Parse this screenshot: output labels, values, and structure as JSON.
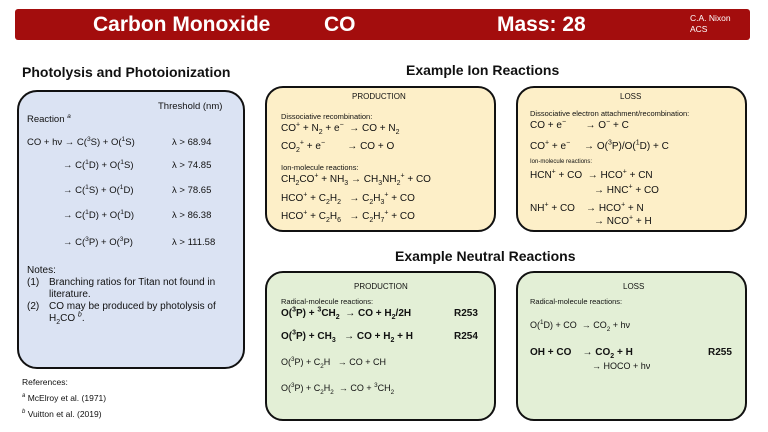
{
  "header": {
    "species_name": "Carbon Monoxide",
    "formula": "CO",
    "mass": "Mass: 28",
    "author_line1": "C.A. Nixon",
    "author_line2": "ACS"
  },
  "photolysis": {
    "title": "Photolysis and Photoionization",
    "col_reaction": "Reaction",
    "col_reaction_sup": "a",
    "col_threshold": "Threshold (nm)",
    "rows": [
      {
        "lhs": "CO + hν",
        "p1": "C(",
        "p1s": "3",
        "p1e": "S) + O(",
        "p2s": "1",
        "p2e": "S)",
        "threshold": "λ > 68.94"
      },
      {
        "lhs": "",
        "p1": "C(",
        "p1s": "1",
        "p1e": "D) + O(",
        "p2s": "1",
        "p2e": "S)",
        "threshold": "λ > 74.85"
      },
      {
        "lhs": "",
        "p1": "C(",
        "p1s": "1",
        "p1e": "S) + O(",
        "p2s": "1",
        "p2e": "D)",
        "threshold": "λ > 78.65"
      },
      {
        "lhs": "",
        "p1": "C(",
        "p1s": "1",
        "p1e": "D) + O(",
        "p2s": "1",
        "p2e": "D)",
        "threshold": "λ > 86.38"
      },
      {
        "lhs": "",
        "p1": "C(",
        "p1s": "3",
        "p1e": "P) + O(",
        "p2s": "3",
        "p2e": "P)",
        "threshold": "λ > 111.58"
      }
    ],
    "notes_title": "Notes:",
    "note1_num": "(1)",
    "note1_a": "Branching ratios for Titan not found in",
    "note1_b": "literature.",
    "note2_num": "(2)",
    "note2_a": "CO may be produced by photolysis of",
    "note2_b_pre": "H",
    "note2_b_sub": "2",
    "note2_b_post": "CO",
    "note2_b_sup": "b",
    "note2_b_end": "."
  },
  "references": {
    "title": "References:",
    "ref_a_sup": "a",
    "ref_a": "McElroy et al. (1971)",
    "ref_b_sup": "b",
    "ref_b": "Vuitton et al. (2019)"
  },
  "ion": {
    "title": "Example Ion Reactions",
    "production": {
      "head": "PRODUCTION",
      "sub1": "Dissociative recombination:",
      "sub2": "Ion-molecule reactions:"
    },
    "loss": {
      "head": "LOSS",
      "sub1": "Dissociative electron attachment/recombination:",
      "sub2": "Ion-molecule reactions:"
    }
  },
  "neutral": {
    "title": "Example Neutral Reactions",
    "production": {
      "head": "PRODUCTION",
      "sub1": "Radical-molecule reactions:",
      "code1": "R253",
      "code2": "R254"
    },
    "loss": {
      "head": "LOSS",
      "sub1": "Radical-molecule reactions:",
      "code1": "R255"
    }
  },
  "colors": {
    "header": "#a30d0d",
    "photolysis_box": "#dbe3f3",
    "ion_box": "#fdefc8",
    "neutral_box": "#e3efd6"
  }
}
